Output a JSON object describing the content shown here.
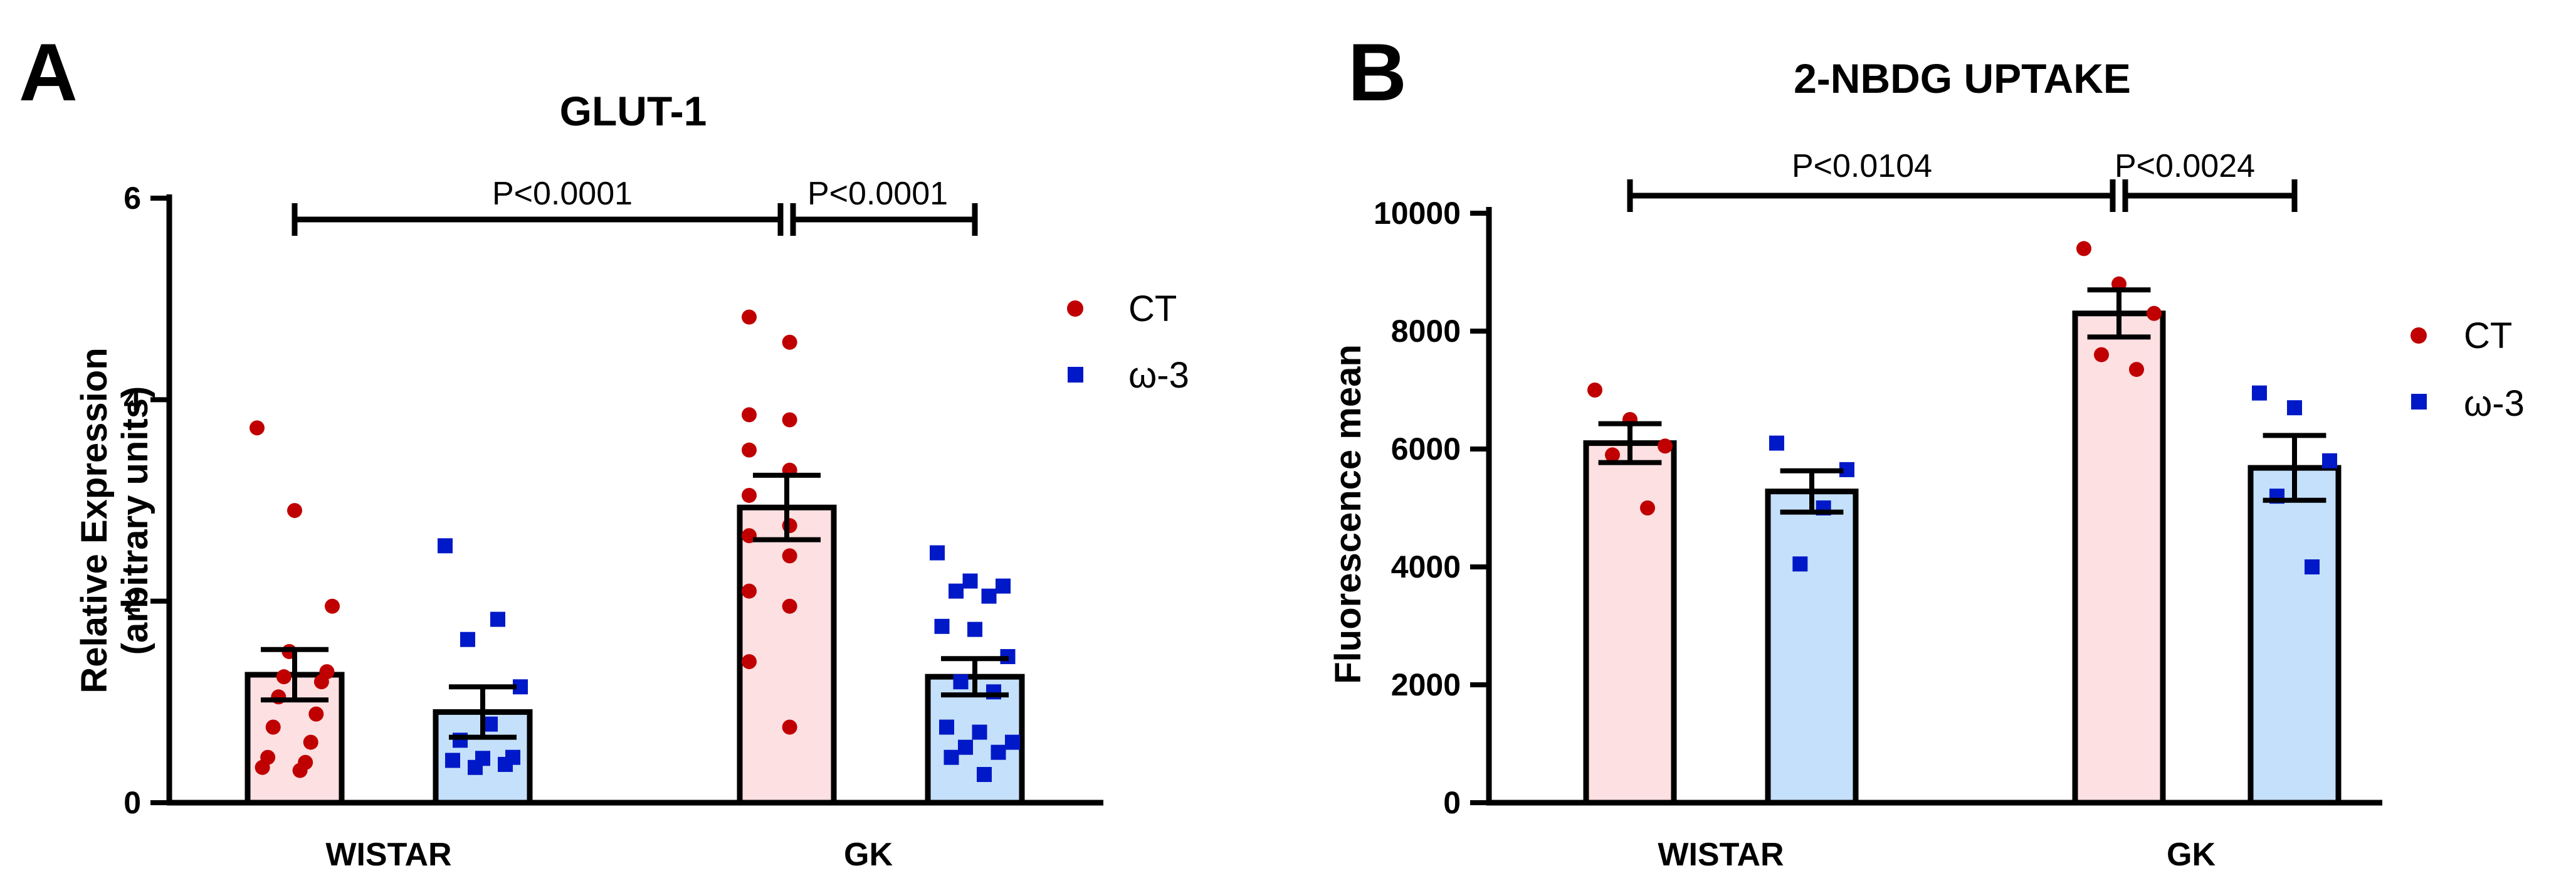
{
  "colors": {
    "ct_fill": "#fce0e2",
    "w3_fill": "#c5e0fa",
    "ct_point": "#c00000",
    "w3_point": "#0019c8",
    "ink": "#000000"
  },
  "legend": {
    "entries": [
      {
        "label": "CT",
        "marker": "circle",
        "color": "#c00000"
      },
      {
        "label": "ω-3",
        "marker": "square",
        "color": "#0019c8"
      }
    ]
  },
  "chart_data": [
    {
      "type": "bar",
      "panel_label": "A",
      "title": "GLUT-1",
      "ylabel_lines": [
        "Relative Expression",
        "(arbitrary units)"
      ],
      "xlabel": "",
      "ylim": [
        0,
        6
      ],
      "yticks": [
        0,
        2,
        4,
        6
      ],
      "ytick_labels": [
        "0",
        "2",
        "4",
        "6"
      ],
      "categories": [
        "WISTAR",
        "GK"
      ],
      "series": [
        {
          "name": "CT",
          "values": [
            1.27,
            2.93
          ],
          "sem": [
            0.25,
            0.32
          ],
          "points": [
            [
              3.72,
              2.9,
              1.95,
              1.5,
              1.3,
              1.25,
              1.2,
              1.05,
              0.88,
              0.75,
              0.6,
              0.45,
              0.4,
              0.35,
              0.32
            ],
            [
              4.82,
              4.57,
              3.85,
              3.8,
              3.5,
              3.3,
              3.05,
              2.75,
              2.65,
              2.45,
              2.1,
              1.95,
              1.4,
              0.75
            ]
          ]
        },
        {
          "name": "ω-3",
          "values": [
            0.9,
            1.25
          ],
          "sem": [
            0.25,
            0.18
          ],
          "points": [
            [
              2.55,
              1.82,
              1.62,
              1.15,
              0.78,
              0.62,
              0.45,
              0.44,
              0.42,
              0.38,
              0.35
            ],
            [
              2.48,
              2.2,
              2.15,
              2.1,
              2.05,
              1.75,
              1.72,
              1.45,
              1.2,
              1.1,
              0.75,
              0.7,
              0.6,
              0.55,
              0.5,
              0.45,
              0.28
            ]
          ]
        }
      ],
      "annotations": [
        {
          "text": "P<0.0001",
          "from": "WISTAR CT",
          "to": "GK CT"
        },
        {
          "text": "P<0.0001",
          "from": "GK CT",
          "to": "GK ω-3"
        }
      ],
      "legend_position": "right"
    },
    {
      "type": "bar",
      "panel_label": "B",
      "title": "2-NBDG UPTAKE",
      "ylabel_lines": [
        "Fluorescence mean"
      ],
      "xlabel": "",
      "ylim": [
        0,
        10000
      ],
      "yticks": [
        0,
        2000,
        4000,
        6000,
        8000,
        10000
      ],
      "ytick_labels": [
        "0",
        "2000",
        "4000",
        "6000",
        "8000",
        "10000"
      ],
      "categories": [
        "WISTAR",
        "GK"
      ],
      "series": [
        {
          "name": "CT",
          "values": [
            6100,
            8300
          ],
          "sem": [
            330,
            400
          ],
          "points": [
            [
              7000,
              6500,
              6050,
              5900,
              5000
            ],
            [
              9400,
              8800,
              8300,
              7600,
              7350
            ]
          ]
        },
        {
          "name": "ω-3",
          "values": [
            5280,
            5680
          ],
          "sem": [
            350,
            550
          ],
          "points": [
            [
              6100,
              5650,
              5000,
              4050
            ],
            [
              6950,
              6700,
              5800,
              5200,
              4000
            ]
          ]
        }
      ],
      "annotations": [
        {
          "text": "P<0.0104",
          "from": "WISTAR CT",
          "to": "GK CT"
        },
        {
          "text": "P<0.0024",
          "from": "GK CT",
          "to": "GK ω-3"
        }
      ],
      "legend_position": "right"
    }
  ]
}
